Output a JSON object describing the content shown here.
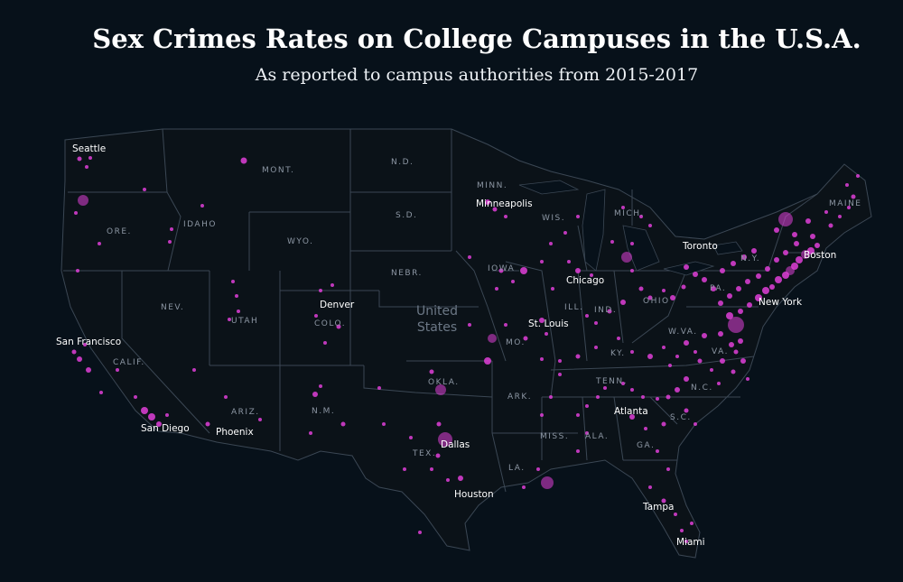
{
  "title": "Sex Crimes Rates on College Campuses in the U.S.A.",
  "subtitle": "As reported to campus authorities from 2015-2017",
  "colors": {
    "background": "#07111a",
    "land": "#0b1218",
    "border": "#3b4754",
    "point": "#e040d8"
  },
  "country_label": [
    "United",
    "States"
  ],
  "state_labels": [
    "MONT.",
    "N.D.",
    "MINN.",
    "IDAHO",
    "ORE.",
    "WYO.",
    "S.D.",
    "WIS.",
    "MICH.",
    "IOWA",
    "NEBR.",
    "NEV.",
    "UTAH",
    "COLO.",
    "ILL.",
    "IND.",
    "OHIO",
    "PA.",
    "MO.",
    "KY.",
    "W.VA.",
    "VA.",
    "CALIF.",
    "OKLA.",
    "ARK.",
    "TENN.",
    "N.C.",
    "ARIZ.",
    "N.M.",
    "TEX.",
    "MISS.",
    "ALA.",
    "GA.",
    "S.C.",
    "LA.",
    "MAINE",
    "N.Y."
  ],
  "cities": [
    "Seattle",
    "Minneapolis",
    "Toronto",
    "Boston",
    "Chicago",
    "Denver",
    "New York",
    "St. Louis",
    "San Francisco",
    "Atlanta",
    "San Diego",
    "Phoenix",
    "Dallas",
    "Houston",
    "Tampa",
    "Miami"
  ]
}
